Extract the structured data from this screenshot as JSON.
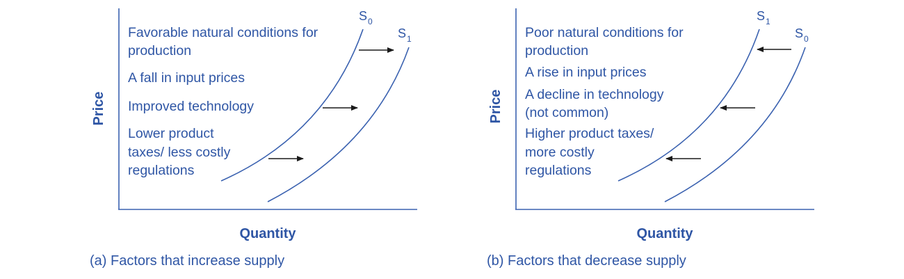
{
  "colors": {
    "text": "#2f56a5",
    "axis": "#3b62b0",
    "curve": "#3b62b0",
    "arrow": "#1a1a1a"
  },
  "panel_a": {
    "caption": "(a) Factors that increase supply",
    "ylabel": "Price",
    "xlabel": "Quantity",
    "curve_first": {
      "letter": "S",
      "sub": "0"
    },
    "curve_second": {
      "letter": "S",
      "sub": "1"
    },
    "factors": [
      {
        "lines": [
          "Favorable natural conditions for",
          "production"
        ]
      },
      {
        "lines": [
          "A fall in input prices"
        ]
      },
      {
        "lines": [
          "Improved technology"
        ]
      },
      {
        "lines": [
          "Lower product",
          "taxes/ less costly",
          "regulations"
        ]
      }
    ],
    "shift_direction": "right"
  },
  "panel_b": {
    "caption": "(b) Factors that decrease supply",
    "ylabel": "Price",
    "xlabel": "Quantity",
    "curve_first": {
      "letter": "S",
      "sub": "1"
    },
    "curve_second": {
      "letter": "S",
      "sub": "0"
    },
    "factors": [
      {
        "lines": [
          "Poor natural conditions for",
          "production"
        ]
      },
      {
        "lines": [
          "A rise in input prices"
        ]
      },
      {
        "lines": [
          "A decline in technology",
          "(not common)"
        ]
      },
      {
        "lines": [
          "Higher product taxes/",
          "more costly",
          "regulations"
        ]
      }
    ],
    "shift_direction": "left"
  }
}
